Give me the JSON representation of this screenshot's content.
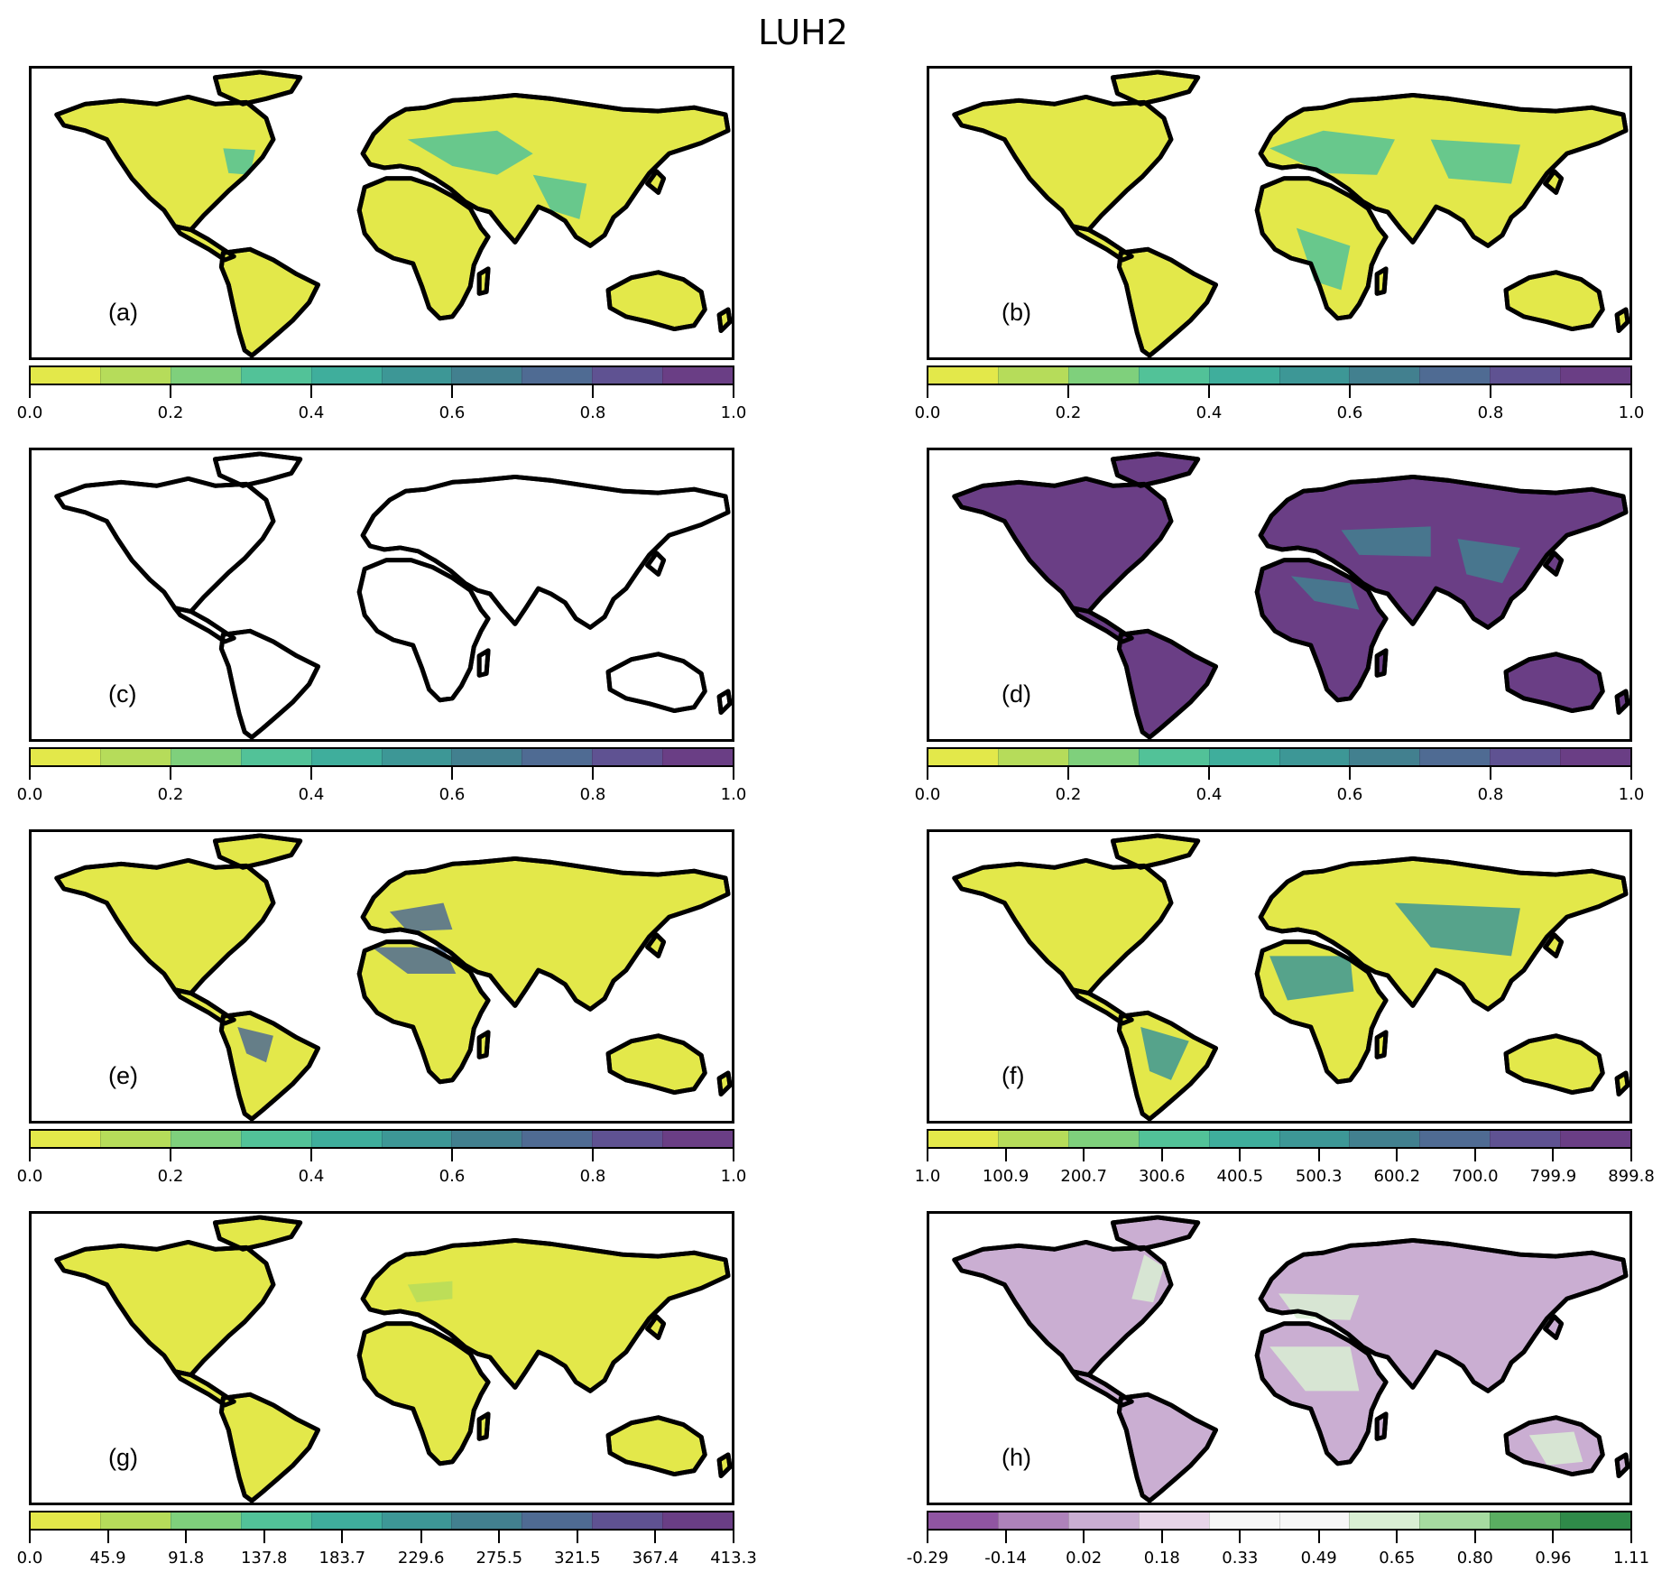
{
  "title": "LUH2",
  "colors": {
    "viridis_r": [
      "#e3e84a",
      "#b6dc5a",
      "#7fd07c",
      "#52c298",
      "#3fae9c",
      "#3d9796",
      "#42808f",
      "#4f6b93",
      "#5f5292",
      "#6a3e85"
    ],
    "prgn": [
      "#9055a2",
      "#ae82ba",
      "#caaed2",
      "#e7d4e8",
      "#f7f7f7",
      "#f7f7f7",
      "#d9efd3",
      "#a6dba0",
      "#5aae61",
      "#2f8a49"
    ],
    "coastline": "#000000"
  },
  "panels": [
    {
      "id": "a",
      "label": "(a)",
      "colormap": "viridis_r",
      "land_fill": "#e3e84a",
      "accent": "#52c298",
      "ticks": [
        "0.0",
        "0.2",
        "0.4",
        "0.6",
        "0.8",
        "1.0"
      ],
      "tick_positions": [
        0,
        0.2,
        0.4,
        0.6,
        0.8,
        1.0
      ]
    },
    {
      "id": "b",
      "label": "(b)",
      "colormap": "viridis_r",
      "land_fill": "#e3e84a",
      "accent": "#52c298",
      "ticks": [
        "0.0",
        "0.2",
        "0.4",
        "0.6",
        "0.8",
        "1.0"
      ],
      "tick_positions": [
        0,
        0.2,
        0.4,
        0.6,
        0.8,
        1.0
      ]
    },
    {
      "id": "c",
      "label": "(c)",
      "colormap": "viridis_r",
      "land_fill": "#ffffff",
      "accent": "#e3e84a",
      "ticks": [
        "0.0",
        "0.2",
        "0.4",
        "0.6",
        "0.8",
        "1.0"
      ],
      "tick_positions": [
        0,
        0.2,
        0.4,
        0.6,
        0.8,
        1.0
      ]
    },
    {
      "id": "d",
      "label": "(d)",
      "colormap": "viridis_r",
      "land_fill": "#6a3e85",
      "accent": "#42808f",
      "ticks": [
        "0.0",
        "0.2",
        "0.4",
        "0.6",
        "0.8",
        "1.0"
      ],
      "tick_positions": [
        0,
        0.2,
        0.4,
        0.6,
        0.8,
        1.0
      ]
    },
    {
      "id": "e",
      "label": "(e)",
      "colormap": "viridis_r",
      "land_fill": "#e3e84a",
      "accent": "#4f6b93",
      "ticks": [
        "0.0",
        "0.2",
        "0.4",
        "0.6",
        "0.8",
        "1.0"
      ],
      "tick_positions": [
        0,
        0.2,
        0.4,
        0.6,
        0.8,
        1.0
      ]
    },
    {
      "id": "f",
      "label": "(f)",
      "colormap": "viridis_r",
      "land_fill": "#e3e84a",
      "accent": "#3d9796",
      "ticks": [
        "1.0",
        "100.9",
        "200.7",
        "300.6",
        "400.5",
        "500.3",
        "600.2",
        "700.0",
        "799.9",
        "899.8"
      ],
      "tick_positions": [
        0,
        0.111,
        0.222,
        0.333,
        0.444,
        0.556,
        0.667,
        0.778,
        0.889,
        1.0
      ]
    },
    {
      "id": "g",
      "label": "(g)",
      "colormap": "viridis_r",
      "land_fill": "#e3e84a",
      "accent": "#b6dc5a",
      "ticks": [
        "0.0",
        "45.9",
        "91.8",
        "137.8",
        "183.7",
        "229.6",
        "275.5",
        "321.5",
        "367.4",
        "413.3"
      ],
      "tick_positions": [
        0,
        0.111,
        0.222,
        0.333,
        0.444,
        0.556,
        0.667,
        0.778,
        0.889,
        1.0
      ]
    },
    {
      "id": "h",
      "label": "(h)",
      "colormap": "prgn",
      "land_fill": "#caaed2",
      "accent": "#d9efd3",
      "ticks": [
        "-0.29",
        "-0.14",
        "0.02",
        "0.18",
        "0.33",
        "0.49",
        "0.65",
        "0.80",
        "0.96",
        "1.11"
      ],
      "tick_positions": [
        0,
        0.111,
        0.222,
        0.333,
        0.444,
        0.556,
        0.667,
        0.778,
        0.889,
        1.0
      ]
    }
  ]
}
